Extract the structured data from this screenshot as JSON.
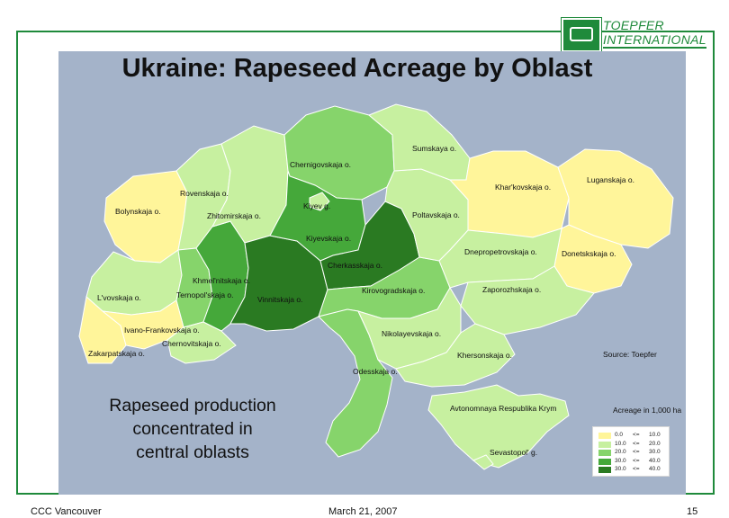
{
  "logo": {
    "line1": "TOEPFER",
    "line2": "INTERNATIONAL",
    "color": "#1f8a3b"
  },
  "title": "Ukraine: Rapeseed Acreage by Oblast",
  "map": {
    "oblasts": [
      {
        "name": "Sumskaya o.",
        "level": 1
      },
      {
        "name": "Chernigovskaja o.",
        "level": 2
      },
      {
        "name": "Rovenskaja o.",
        "level": 1
      },
      {
        "name": "Kiyev g.",
        "level": 1
      },
      {
        "name": "Khar'kovskaja o.",
        "level": 0
      },
      {
        "name": "Luganskaja o.",
        "level": 0
      },
      {
        "name": "Bolynskaja o.",
        "level": 0
      },
      {
        "name": "Zhitomirskaja o.",
        "level": 1
      },
      {
        "name": "Poltavskaja o.",
        "level": 1
      },
      {
        "name": "Kiyevskaja o.",
        "level": 3
      },
      {
        "name": "Dnepropetrovskaja o.",
        "level": 1
      },
      {
        "name": "Donetskskaja o.",
        "level": 0
      },
      {
        "name": "Cherkasskaja o.",
        "level": 4
      },
      {
        "name": "Khmel'nitskaja o.",
        "level": 3
      },
      {
        "name": "Ternopol'skaja o.",
        "level": 2
      },
      {
        "name": "Kirovogradskaja o.",
        "level": 2
      },
      {
        "name": "L'vovskaja o.",
        "level": 1
      },
      {
        "name": "Vinnitskaja o.",
        "level": 4
      },
      {
        "name": "Zaporozhskaja o.",
        "level": 1
      },
      {
        "name": "Ivano-Frankovskaja o.",
        "level": 0
      },
      {
        "name": "Chernovitskaja o.",
        "level": 1
      },
      {
        "name": "Nikolayevskaja o.",
        "level": 1
      },
      {
        "name": "Zakarpatskaja o.",
        "level": 0
      },
      {
        "name": "Khersonskaja o.",
        "level": 1
      },
      {
        "name": "Odesskaja o.",
        "level": 2
      },
      {
        "name": "Avtonomnaya Respublika Krym",
        "level": 1
      },
      {
        "name": "Sevastopol' g.",
        "level": 1
      }
    ]
  },
  "source": "Source: Toepfer",
  "caption": [
    "Rapeseed production",
    "concentrated in",
    "central oblasts"
  ],
  "legend": {
    "title": "Acreage in 1,000 ha",
    "rows": [
      {
        "lo": "0.0",
        "rel": "<=",
        "hi": "10.0",
        "color": "#fff59a"
      },
      {
        "lo": "10.0",
        "rel": "<=",
        "hi": "20.0",
        "color": "#c7f0a0"
      },
      {
        "lo": "20.0",
        "rel": "<=",
        "hi": "30.0",
        "color": "#86d46b"
      },
      {
        "lo": "30.0",
        "rel": "<=",
        "hi": "40.0",
        "color": "#45a83a"
      },
      {
        "lo": "30.0",
        "rel": "<=",
        "hi": "40.0",
        "color": "#2a7a22"
      }
    ]
  },
  "footer": {
    "left": "CCC Vancouver",
    "center": "March 21, 2007",
    "right": "15"
  }
}
